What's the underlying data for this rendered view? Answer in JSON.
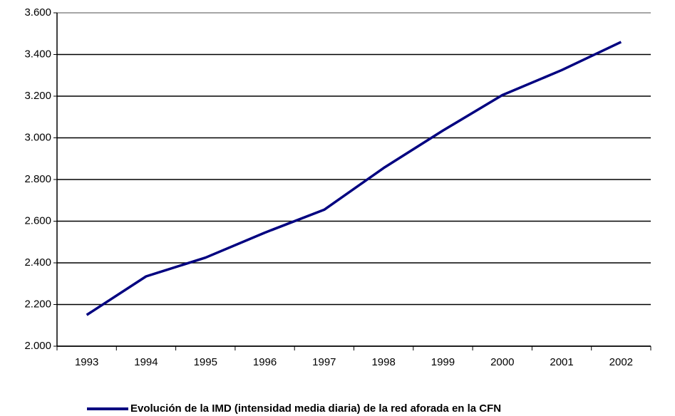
{
  "chart_data": {
    "type": "line",
    "categories": [
      "1993",
      "1994",
      "1995",
      "1996",
      "1997",
      "1998",
      "1999",
      "2000",
      "2001",
      "2002"
    ],
    "series": [
      {
        "name": "Evolución de la IMD (intensidad media diaria) de la red aforada en la CFN",
        "color": "#000080",
        "values": [
          2150,
          2335,
          2425,
          2545,
          2655,
          2855,
          3035,
          3205,
          3325,
          3460
        ]
      }
    ],
    "ylim": [
      2000,
      3600
    ],
    "yticks": [
      {
        "value": 2000,
        "label": "2.000"
      },
      {
        "value": 2200,
        "label": "2.200"
      },
      {
        "value": 2400,
        "label": "2.400"
      },
      {
        "value": 2600,
        "label": "2.600"
      },
      {
        "value": 2800,
        "label": "2.800"
      },
      {
        "value": 3000,
        "label": "3.000"
      },
      {
        "value": 3200,
        "label": "3.200"
      },
      {
        "value": 3400,
        "label": "3.400"
      },
      {
        "value": 3600,
        "label": "3.600"
      }
    ],
    "grid": true,
    "legend": "bottom"
  }
}
